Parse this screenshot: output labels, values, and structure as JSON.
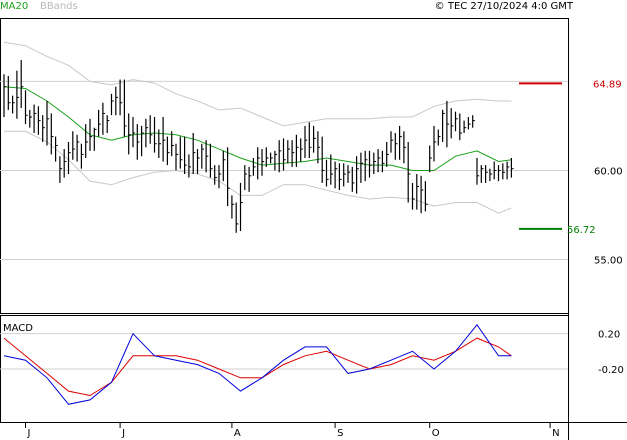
{
  "header": {
    "ma_label": "MA20",
    "bb_label": "BBands",
    "copyright": "© TEC 27/10/2024 4:0 GMT"
  },
  "colors": {
    "ma": "#1aa01a",
    "bands": "#c8c8c8",
    "price": "#000000",
    "resistance": "#d00000",
    "support": "#008000",
    "macd": "#0000dd",
    "signal": "#dd0000",
    "grid": "#d0d0d0"
  },
  "levels": {
    "resistance": {
      "label": "64.89",
      "value": 64.89
    },
    "support": {
      "label": "56.72",
      "value": 56.72
    }
  },
  "chart_data": [
    {
      "type": "ohlc",
      "y_ticks": [
        "60.00",
        "55.00"
      ],
      "y_tick_values": [
        60,
        55
      ],
      "ylim": [
        52,
        68.5
      ],
      "x_ticks": [
        "J",
        "J",
        "A",
        "S",
        "O",
        "N"
      ],
      "x_tick_index": [
        5,
        27,
        53,
        77,
        99,
        127
      ],
      "n_days": 130,
      "prices": {
        "days": [
          0,
          1,
          2,
          3,
          4,
          5,
          6,
          7,
          8,
          9,
          10,
          11,
          12,
          13,
          14,
          15,
          16,
          17,
          18,
          19,
          20,
          21,
          22,
          23,
          24,
          25,
          26,
          27,
          28,
          29,
          30,
          31,
          32,
          33,
          34,
          35,
          36,
          37,
          38,
          39,
          40,
          41,
          42,
          43,
          44,
          45,
          46,
          47,
          48,
          49,
          50,
          51,
          52,
          53,
          54,
          55,
          56,
          57,
          58,
          59,
          60,
          61,
          62,
          63,
          64,
          65,
          66,
          67,
          68,
          69,
          70,
          71,
          72,
          73,
          74,
          75,
          76,
          77,
          78,
          79,
          80,
          81,
          82,
          83,
          84,
          85,
          86,
          87,
          88,
          89,
          90,
          91,
          92,
          93,
          94,
          95,
          96,
          97,
          98,
          99,
          100,
          101,
          102,
          103,
          104,
          105,
          106,
          107,
          108,
          109,
          110,
          111,
          112,
          113,
          114,
          115,
          116,
          117,
          118
        ],
        "high": [
          65.4,
          65.3,
          64.2,
          65.6,
          66.2,
          64.5,
          63.4,
          63.7,
          63.6,
          63.1,
          63.9,
          63.2,
          61.9,
          60.8,
          61.2,
          61.6,
          62.2,
          62.0,
          61.5,
          62.6,
          62.9,
          62.4,
          63.4,
          63.8,
          63.1,
          64.3,
          64.7,
          65.1,
          65.1,
          63.2,
          63.0,
          62.6,
          62.5,
          62.9,
          63.1,
          63.0,
          62.3,
          63.0,
          61.9,
          62.2,
          61.5,
          61.9,
          61.9,
          60.9,
          62.1,
          61.2,
          61.5,
          61.7,
          61.5,
          60.3,
          60.3,
          61.1,
          61.3,
          58.6,
          58.2,
          59.3,
          60.3,
          60.2,
          60.7,
          61.3,
          61.2,
          61.3,
          61.0,
          61.1,
          61.7,
          61.8,
          61.7,
          61.7,
          62.0,
          61.8,
          62.5,
          62.7,
          62.5,
          62.2,
          61.9,
          60.6,
          60.9,
          60.5,
          60.4,
          60.4,
          60.3,
          60.2,
          60.8,
          61.0,
          61.1,
          61.1,
          61.0,
          61.2,
          61.1,
          61.6,
          62.2,
          62.1,
          62.5,
          62.2,
          61.6,
          59.3,
          59.8,
          59.7,
          59.4,
          61.4,
          62.5,
          62.3,
          63.4,
          63.9,
          63.5,
          63.3,
          63.2,
          62.8,
          63.0,
          63.1,
          60.7,
          60.3,
          60.3,
          60.1,
          60.5,
          60.3,
          60.4,
          60.5,
          60.7
        ],
        "low": [
          63.0,
          63.4,
          63.2,
          62.9,
          63.5,
          62.6,
          62.4,
          62.1,
          62.0,
          61.6,
          61.4,
          60.9,
          60.5,
          59.3,
          59.6,
          59.8,
          60.6,
          60.5,
          60.1,
          60.7,
          61.1,
          61.1,
          61.9,
          62.0,
          62.1,
          63.1,
          63.1,
          63.1,
          61.9,
          60.9,
          61.3,
          60.6,
          60.8,
          61.3,
          61.5,
          61.0,
          60.7,
          60.5,
          60.3,
          60.8,
          60.0,
          60.1,
          59.8,
          59.6,
          59.8,
          59.8,
          60.1,
          59.9,
          59.6,
          59.2,
          59.0,
          59.4,
          58.0,
          57.3,
          56.5,
          56.6,
          58.9,
          58.8,
          59.7,
          59.5,
          59.7,
          60.2,
          60.4,
          60.0,
          59.9,
          60.0,
          60.4,
          60.2,
          60.2,
          60.5,
          60.7,
          60.7,
          61.0,
          60.4,
          59.3,
          59.1,
          59.2,
          59.0,
          58.9,
          59.1,
          59.3,
          58.8,
          58.7,
          59.3,
          59.4,
          59.6,
          59.8,
          59.9,
          59.9,
          60.2,
          61.0,
          60.6,
          60.6,
          60.4,
          58.2,
          57.8,
          57.8,
          57.6,
          57.7,
          59.9,
          60.5,
          61.4,
          61.6,
          61.3,
          61.8,
          62.2,
          61.7,
          62.1,
          62.3,
          62.4,
          59.2,
          59.3,
          59.3,
          59.4,
          59.5,
          59.4,
          59.5,
          59.5,
          59.6
        ],
        "close": [
          64.7,
          63.8,
          63.8,
          64.1,
          64.7,
          63.1,
          63.0,
          63.2,
          62.8,
          62.4,
          62.9,
          61.9,
          61.4,
          60.1,
          60.5,
          61.0,
          61.2,
          61.6,
          60.9,
          61.6,
          61.9,
          62.3,
          62.6,
          63.2,
          62.8,
          63.9,
          64.1,
          63.8,
          62.5,
          62.0,
          62.1,
          61.6,
          62.1,
          62.4,
          62.0,
          61.5,
          61.5,
          61.7,
          61.0,
          61.4,
          60.9,
          60.6,
          60.3,
          60.2,
          61.0,
          60.7,
          61.2,
          60.8,
          60.1,
          59.6,
          59.8,
          60.6,
          59.0,
          58.1,
          57.0,
          58.2,
          59.8,
          59.7,
          60.2,
          60.7,
          60.5,
          60.7,
          60.7,
          60.9,
          61.1,
          60.6,
          61.2,
          61.0,
          61.3,
          61.2,
          61.7,
          61.3,
          61.8,
          61.3,
          60.0,
          59.5,
          59.8,
          60.1,
          59.5,
          59.8,
          59.9,
          59.3,
          60.1,
          60.4,
          60.6,
          60.3,
          60.5,
          60.7,
          60.4,
          60.9,
          61.7,
          61.5,
          61.9,
          61.3,
          59.8,
          58.4,
          59.1,
          58.9,
          58.1,
          60.7,
          61.6,
          61.9,
          63.2,
          62.6,
          62.5,
          62.9,
          62.1,
          62.4,
          62.6,
          62.8,
          59.7,
          60.1,
          59.9,
          59.8,
          60.0,
          60.0,
          59.9,
          60.2,
          60.1
        ]
      },
      "ma20": {
        "days": [
          0,
          5,
          10,
          15,
          20,
          25,
          30,
          35,
          40,
          45,
          50,
          55,
          60,
          65,
          70,
          75,
          80,
          85,
          90,
          95,
          100,
          105,
          110,
          115,
          118
        ],
        "values": [
          64.7,
          64.6,
          63.9,
          63.0,
          62.0,
          61.7,
          62.0,
          62.1,
          62.0,
          61.7,
          61.2,
          60.7,
          60.3,
          60.4,
          60.5,
          60.7,
          60.5,
          60.3,
          60.3,
          60.0,
          60.0,
          60.8,
          61.1,
          60.5,
          60.6
        ]
      },
      "bb_upper": {
        "days": [
          0,
          5,
          10,
          15,
          20,
          25,
          30,
          35,
          40,
          45,
          50,
          55,
          60,
          65,
          70,
          75,
          80,
          85,
          90,
          95,
          100,
          105,
          110,
          115,
          118
        ],
        "values": [
          67.2,
          67.0,
          66.4,
          65.9,
          65.0,
          64.8,
          65.1,
          64.9,
          64.3,
          63.9,
          63.4,
          63.5,
          63.0,
          62.5,
          62.7,
          62.9,
          62.9,
          62.9,
          63.0,
          63.0,
          63.6,
          63.9,
          64.0,
          63.9,
          63.9
        ]
      },
      "bb_lower": {
        "days": [
          0,
          5,
          10,
          15,
          20,
          25,
          30,
          35,
          40,
          45,
          50,
          55,
          60,
          65,
          70,
          75,
          80,
          85,
          90,
          95,
          100,
          105,
          110,
          115,
          118
        ],
        "values": [
          62.2,
          62.2,
          61.6,
          60.6,
          59.4,
          59.2,
          59.6,
          59.9,
          60.0,
          59.8,
          59.4,
          58.6,
          58.6,
          59.2,
          59.2,
          58.9,
          58.6,
          58.4,
          58.5,
          58.4,
          58.0,
          58.2,
          58.2,
          57.6,
          57.9
        ]
      }
    },
    {
      "type": "line",
      "title": "MACD",
      "y_ticks": [
        "0.20",
        "-0.20"
      ],
      "y_tick_values": [
        0.2,
        -0.2
      ],
      "ylim": [
        -0.8,
        0.4
      ],
      "series": [
        {
          "name": "macd",
          "days": [
            0,
            5,
            10,
            15,
            20,
            25,
            30,
            35,
            40,
            45,
            50,
            55,
            60,
            65,
            70,
            75,
            80,
            85,
            90,
            95,
            100,
            105,
            110,
            115,
            118
          ],
          "values": [
            -0.05,
            -0.1,
            -0.3,
            -0.6,
            -0.55,
            -0.35,
            0.2,
            -0.05,
            -0.1,
            -0.15,
            -0.25,
            -0.45,
            -0.3,
            -0.1,
            0.05,
            0.05,
            -0.25,
            -0.2,
            -0.1,
            0.0,
            -0.2,
            0.0,
            0.3,
            -0.05,
            -0.05
          ]
        },
        {
          "name": "signal",
          "days": [
            0,
            5,
            10,
            15,
            20,
            25,
            30,
            35,
            40,
            45,
            50,
            55,
            60,
            65,
            70,
            75,
            80,
            85,
            90,
            95,
            100,
            105,
            110,
            115,
            118
          ],
          "values": [
            0.15,
            -0.05,
            -0.25,
            -0.45,
            -0.5,
            -0.35,
            -0.05,
            -0.05,
            -0.05,
            -0.1,
            -0.2,
            -0.3,
            -0.3,
            -0.15,
            -0.05,
            0.0,
            -0.1,
            -0.2,
            -0.15,
            -0.05,
            -0.1,
            0.0,
            0.15,
            0.05,
            -0.05
          ]
        }
      ]
    }
  ]
}
